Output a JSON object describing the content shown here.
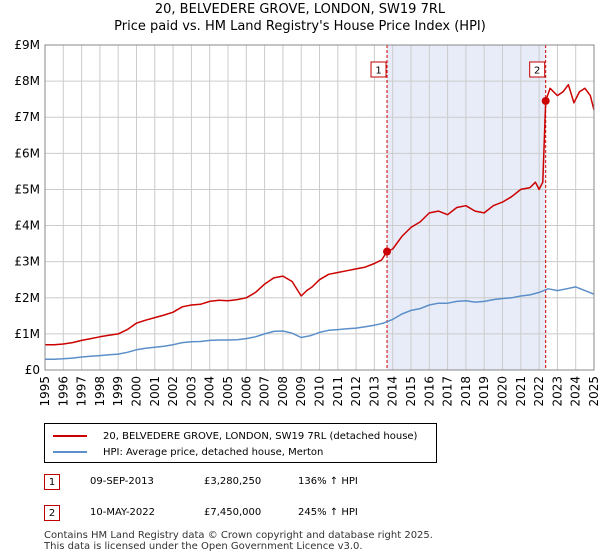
{
  "title": {
    "line1": "20, BELVEDERE GROVE, LONDON, SW19 7RL",
    "line2": "Price paid vs. HM Land Registry's House Price Index (HPI)"
  },
  "colors": {
    "price": "#cc0000",
    "hpi": "#5b8fc9",
    "shade": "#e8ecf8",
    "grid": "#cccccc"
  },
  "chart_data": {
    "type": "line",
    "xlim": [
      1995,
      2025
    ],
    "ylim": [
      0,
      9000000
    ],
    "y_ticks": [
      {
        "value": 0,
        "label": "£0"
      },
      {
        "value": 1000000,
        "label": "£1M"
      },
      {
        "value": 2000000,
        "label": "£2M"
      },
      {
        "value": 3000000,
        "label": "£3M"
      },
      {
        "value": 4000000,
        "label": "£4M"
      },
      {
        "value": 5000000,
        "label": "£5M"
      },
      {
        "value": 6000000,
        "label": "£6M"
      },
      {
        "value": 7000000,
        "label": "£7M"
      },
      {
        "value": 8000000,
        "label": "£8M"
      },
      {
        "value": 9000000,
        "label": "£9M"
      }
    ],
    "x_ticks": [
      "1995",
      "1996",
      "1997",
      "1998",
      "1999",
      "2000",
      "2001",
      "2002",
      "2003",
      "2004",
      "2005",
      "2006",
      "2007",
      "2008",
      "2009",
      "2010",
      "2011",
      "2012",
      "2013",
      "2014",
      "2015",
      "2016",
      "2017",
      "2018",
      "2019",
      "2020",
      "2021",
      "2022",
      "2023",
      "2024",
      "2025"
    ],
    "series": [
      {
        "name": "20, BELVEDERE GROVE, LONDON, SW19 7RL (detached house)",
        "color": "#cc0000",
        "x": [
          1995.0,
          1995.5,
          1996.0,
          1996.5,
          1997.0,
          1997.5,
          1998.0,
          1998.5,
          1999.0,
          1999.5,
          2000.0,
          2000.5,
          2001.0,
          2001.5,
          2002.0,
          2002.5,
          2003.0,
          2003.5,
          2004.0,
          2004.5,
          2005.0,
          2005.5,
          2006.0,
          2006.5,
          2007.0,
          2007.5,
          2008.0,
          2008.5,
          2009.0,
          2009.3,
          2009.6,
          2010.0,
          2010.5,
          2011.0,
          2011.5,
          2012.0,
          2012.5,
          2013.0,
          2013.4,
          2013.69,
          2014.0,
          2014.5,
          2015.0,
          2015.5,
          2016.0,
          2016.5,
          2017.0,
          2017.5,
          2018.0,
          2018.5,
          2019.0,
          2019.5,
          2020.0,
          2020.5,
          2021.0,
          2021.5,
          2021.8,
          2022.0,
          2022.2,
          2022.36,
          2022.6,
          2023.0,
          2023.3,
          2023.6,
          2023.9,
          2024.2,
          2024.5,
          2024.8,
          2025.0
        ],
        "y": [
          700000,
          700000,
          720000,
          760000,
          820000,
          870000,
          920000,
          960000,
          1000000,
          1120000,
          1300000,
          1380000,
          1450000,
          1520000,
          1600000,
          1750000,
          1800000,
          1820000,
          1900000,
          1930000,
          1920000,
          1950000,
          2000000,
          2150000,
          2380000,
          2550000,
          2600000,
          2450000,
          2050000,
          2200000,
          2300000,
          2500000,
          2650000,
          2700000,
          2750000,
          2800000,
          2850000,
          2950000,
          3050000,
          3280250,
          3350000,
          3700000,
          3950000,
          4100000,
          4350000,
          4400000,
          4300000,
          4500000,
          4550000,
          4400000,
          4350000,
          4550000,
          4650000,
          4800000,
          5000000,
          5050000,
          5200000,
          5000000,
          5200000,
          7450000,
          7800000,
          7600000,
          7700000,
          7900000,
          7400000,
          7700000,
          7800000,
          7600000,
          7200000
        ]
      },
      {
        "name": "HPI: Average price, detached house, Merton",
        "color": "#5b8fc9",
        "x": [
          1995.0,
          1995.5,
          1996.0,
          1996.5,
          1997.0,
          1997.5,
          1998.0,
          1998.5,
          1999.0,
          1999.5,
          2000.0,
          2000.5,
          2001.0,
          2001.5,
          2002.0,
          2002.5,
          2003.0,
          2003.5,
          2004.0,
          2004.5,
          2005.0,
          2005.5,
          2006.0,
          2006.5,
          2007.0,
          2007.5,
          2008.0,
          2008.5,
          2009.0,
          2009.5,
          2010.0,
          2010.5,
          2011.0,
          2011.5,
          2012.0,
          2012.5,
          2013.0,
          2013.5,
          2014.0,
          2014.5,
          2015.0,
          2015.5,
          2016.0,
          2016.5,
          2017.0,
          2017.5,
          2018.0,
          2018.5,
          2019.0,
          2019.5,
          2020.0,
          2020.5,
          2021.0,
          2021.5,
          2022.0,
          2022.5,
          2023.0,
          2023.5,
          2024.0,
          2024.5,
          2025.0
        ],
        "y": [
          300000,
          300000,
          310000,
          330000,
          360000,
          380000,
          400000,
          420000,
          440000,
          490000,
          560000,
          600000,
          630000,
          660000,
          700000,
          760000,
          780000,
          790000,
          820000,
          830000,
          830000,
          840000,
          870000,
          920000,
          1000000,
          1070000,
          1080000,
          1020000,
          900000,
          950000,
          1040000,
          1100000,
          1120000,
          1140000,
          1160000,
          1200000,
          1240000,
          1300000,
          1400000,
          1550000,
          1650000,
          1700000,
          1800000,
          1850000,
          1850000,
          1900000,
          1920000,
          1880000,
          1900000,
          1950000,
          1980000,
          2000000,
          2050000,
          2080000,
          2150000,
          2250000,
          2200000,
          2250000,
          2300000,
          2200000,
          2100000
        ]
      }
    ],
    "shaded_region": [
      2013.69,
      2022.36
    ],
    "annotations": [
      {
        "label": "1",
        "x": 2013.69,
        "y": 3280250
      },
      {
        "label": "2",
        "x": 2022.36,
        "y": 7450000
      }
    ],
    "legend_position": "below"
  },
  "legend": {
    "price_label": "20, BELVEDERE GROVE, LONDON, SW19 7RL (detached house)",
    "hpi_label": "HPI: Average price, detached house, Merton"
  },
  "transactions": [
    {
      "num": "1",
      "date": "09-SEP-2013",
      "price": "£3,280,250",
      "hpi": "136% ↑ HPI"
    },
    {
      "num": "2",
      "date": "10-MAY-2022",
      "price": "£7,450,000",
      "hpi": "245% ↑ HPI"
    }
  ],
  "footer": {
    "line1": "Contains HM Land Registry data © Crown copyright and database right 2025.",
    "line2": "This data is licensed under the Open Government Licence v3.0."
  }
}
